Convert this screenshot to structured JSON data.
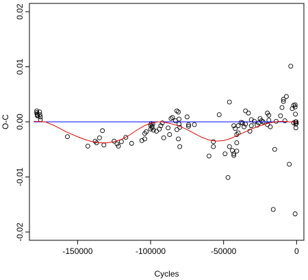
{
  "chart_data": {
    "type": "scatter",
    "title": "",
    "xlabel": "Cycles",
    "ylabel": "O-C",
    "xlim": [
      -183000,
      5000
    ],
    "ylim": [
      -0.0215,
      0.0215
    ],
    "xticks": [
      -150000,
      -100000,
      -50000,
      0
    ],
    "xtick_labels": [
      "-150000",
      "-100000",
      "-50000",
      "0"
    ],
    "yticks": [
      -0.02,
      -0.01,
      0.0,
      0.01,
      0.02
    ],
    "ytick_labels": [
      "-0.02",
      "-0.01",
      "0.00",
      "0.01",
      "0.02"
    ],
    "grid": false,
    "legend": "none",
    "series": [
      {
        "kind": "points",
        "color": "#000000",
        "points": [
          [
            -178000,
            0.002
          ],
          [
            -178000,
            0.0017
          ],
          [
            -177800,
            0.0014
          ],
          [
            -177600,
            0.0012
          ],
          [
            -177500,
            0.0011
          ],
          [
            -176000,
            0.0018
          ],
          [
            -175800,
            0.0013
          ],
          [
            -175500,
            0.0009
          ],
          [
            -175500,
            0.0004
          ],
          [
            -157000,
            -0.0027
          ],
          [
            -143000,
            -0.0044
          ],
          [
            -138000,
            -0.0035
          ],
          [
            -137000,
            -0.0038
          ],
          [
            -135000,
            -0.0029
          ],
          [
            -133000,
            -0.0016
          ],
          [
            -132000,
            -0.0042
          ],
          [
            -125000,
            -0.0035
          ],
          [
            -123000,
            -0.004
          ],
          [
            -122000,
            -0.0044
          ],
          [
            -120000,
            -0.0036
          ],
          [
            -117000,
            -0.0028
          ],
          [
            -113000,
            -0.0039
          ],
          [
            -106000,
            -0.0034
          ],
          [
            -104000,
            -0.0031
          ],
          [
            -104000,
            -0.0021
          ],
          [
            -103000,
            -0.0018
          ],
          [
            -100000,
            -0.0006
          ],
          [
            -99000,
            -0.0008
          ],
          [
            -99000,
            -0.0011
          ],
          [
            -98000,
            -0.0015
          ],
          [
            -98500,
            -0.0004
          ],
          [
            -99500,
            -0.0003
          ],
          [
            -100000,
            -0.0013
          ],
          [
            -96000,
            -0.0017
          ],
          [
            -94000,
            -0.0013
          ],
          [
            -93000,
            -0.0007
          ],
          [
            -92000,
            -0.0002
          ],
          [
            -91000,
            -0.0029
          ],
          [
            -88000,
            -0.0011
          ],
          [
            -87000,
            -0.0023
          ],
          [
            -86000,
            0.0006
          ],
          [
            -85000,
            0.0008
          ],
          [
            -83000,
            0.0002
          ],
          [
            -82000,
            -0.0014
          ],
          [
            -82000,
            0.002
          ],
          [
            -81000,
            0.0018
          ],
          [
            -81000,
            -0.0031
          ],
          [
            -80000,
            -0.0045
          ],
          [
            -80000,
            -0.001
          ],
          [
            -80500,
            0.0005
          ],
          [
            -80500,
            -0.0004
          ],
          [
            -75000,
            0.0009
          ],
          [
            -74000,
            -0.0008
          ],
          [
            -74000,
            -0.0005
          ],
          [
            -70000,
            -0.0005
          ],
          [
            -60000,
            -0.0062
          ],
          [
            -57000,
            -0.0036
          ],
          [
            -57000,
            -0.0045
          ],
          [
            -53000,
            0.0013
          ],
          [
            -49000,
            -0.0058
          ],
          [
            -47000,
            -0.0101
          ],
          [
            -46000,
            0.0036
          ],
          [
            -46000,
            -0.0045
          ],
          [
            -44000,
            -0.0052
          ],
          [
            -43000,
            -0.0061
          ],
          [
            -43000,
            -0.0058
          ],
          [
            -43000,
            -0.0007
          ],
          [
            -42000,
            -0.0012
          ],
          [
            -41000,
            -0.0053
          ],
          [
            -41000,
            -0.0038
          ],
          [
            -41000,
            -0.0023
          ],
          [
            -40000,
            -0.002
          ],
          [
            -40000,
            -0.0007
          ],
          [
            -38000,
            -0.0001
          ],
          [
            -37000,
            -0.0002
          ],
          [
            -36000,
            -0.0009
          ],
          [
            -35000,
            0.002
          ],
          [
            -35000,
            -0.0004
          ],
          [
            -33000,
            0.0016
          ],
          [
            -32000,
            -0.0017
          ],
          [
            -31000,
            0.0004
          ],
          [
            -31000,
            -0.0007
          ],
          [
            -29000,
            0.0001
          ],
          [
            -27000,
            -0.0006
          ],
          [
            -26000,
            -0.0002
          ],
          [
            -25000,
            0.0006
          ],
          [
            -24000,
            0.0002
          ],
          [
            -23000,
            0.0
          ],
          [
            -20000,
            0.0016
          ],
          [
            -20000,
            -0.0005
          ],
          [
            -19000,
            0.0003
          ],
          [
            -19000,
            0.0012
          ],
          [
            -18000,
            -0.0009
          ],
          [
            -16000,
            -0.0159
          ],
          [
            -15000,
            -0.005
          ],
          [
            -14000,
            0.0001
          ],
          [
            -11000,
            0.0011
          ],
          [
            -10000,
            0.0026
          ],
          [
            -9000,
            0.0037
          ],
          [
            -9000,
            0.0041
          ],
          [
            -8000,
            0.0002
          ],
          [
            -7000,
            0.0046
          ],
          [
            -5000,
            -0.0077
          ],
          [
            -4000,
            0.0101
          ],
          [
            -3000,
            0.0024
          ],
          [
            -2000,
            0.003
          ],
          [
            -2000,
            -0.0002
          ],
          [
            -1000,
            0.0031
          ],
          [
            -1000,
            0.0027
          ],
          [
            -800,
            0.0014
          ],
          [
            -700,
            0.0
          ],
          [
            -600,
            -0.0004
          ],
          [
            -500,
            -0.0011
          ],
          [
            -1000,
            -0.0167
          ],
          [
            -300,
            0.0
          ],
          [
            -200,
            -0.0003
          ]
        ]
      },
      {
        "kind": "line",
        "color": "#0000ff",
        "x": [
          -180000,
          0
        ],
        "y": [
          0.0,
          0.0
        ]
      },
      {
        "kind": "line",
        "color": "#dd0000",
        "x": [
          -180000,
          -172000,
          -165000,
          -158000,
          -150000,
          -145000,
          -140000,
          -135000,
          -130000,
          -125000,
          -120000,
          -115000,
          -110000,
          -105000,
          -100000,
          -95000,
          -92000,
          -88000,
          -85000,
          -80000,
          -75000,
          -70000,
          -65000,
          -60000,
          -55000,
          -50000,
          -45000,
          -40000,
          -35000,
          -30000,
          -25000,
          -20000,
          -15000,
          -10000,
          -5000,
          0
        ],
        "y": [
          0.0001,
          0.0,
          -0.0008,
          -0.0018,
          -0.0027,
          -0.0032,
          -0.0036,
          -0.0038,
          -0.0038,
          -0.0036,
          -0.0032,
          -0.0025,
          -0.0016,
          -0.0008,
          -0.0002,
          0.0,
          0.0,
          -0.0002,
          -0.0004,
          -0.0008,
          -0.0014,
          -0.0021,
          -0.0028,
          -0.0033,
          -0.0035,
          -0.0034,
          -0.003,
          -0.0024,
          -0.0018,
          -0.0012,
          -0.0007,
          -0.0003,
          0.0,
          0.0001,
          0.0,
          0.0
        ]
      }
    ]
  }
}
